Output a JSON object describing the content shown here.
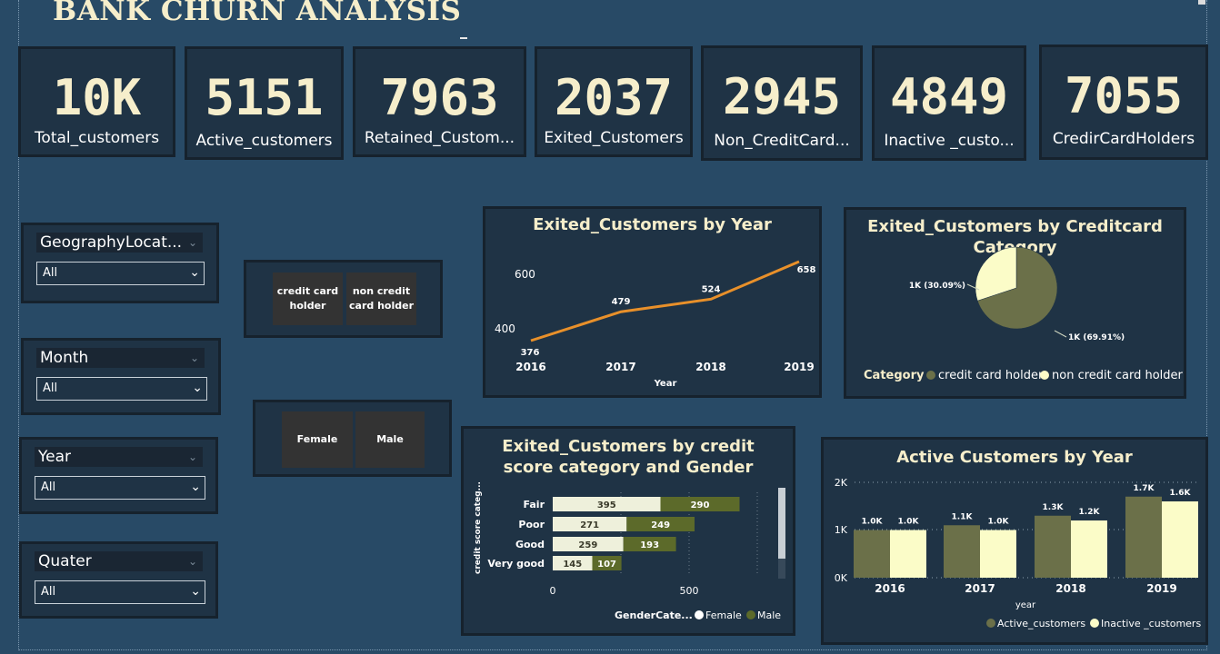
{
  "header": {
    "title": "BANK CHURN ANALYSIS"
  },
  "kpis": [
    {
      "value": "10K",
      "label": "Total_customers"
    },
    {
      "value": "5151",
      "label": "Active_customers"
    },
    {
      "value": "7963",
      "label": "Retained_Custom..."
    },
    {
      "value": "2037",
      "label": "Exited_Customers"
    },
    {
      "value": "2945",
      "label": "Non_CreditCard..."
    },
    {
      "value": "4849",
      "label": "Inactive _custo..."
    },
    {
      "value": "7055",
      "label": "CredirCardHolders"
    }
  ],
  "slicers": [
    {
      "title": "GeographyLocat...",
      "value": "All"
    },
    {
      "title": "Month",
      "value": "All"
    },
    {
      "title": "Year",
      "value": "All"
    },
    {
      "title": "Quater",
      "value": "All"
    }
  ],
  "icons": {
    "chevron": "chevron-down-icon"
  },
  "card_slicer": {
    "options": [
      "credit card holder",
      "non credit card holder"
    ]
  },
  "gender_slicer": {
    "options": [
      "Female",
      "Male"
    ]
  },
  "colors": {
    "accent_line": "#e8902a",
    "olive": "#6b7049",
    "cream": "#fbfcc8",
    "olive_dark": "#5c6a2a"
  },
  "chart_line": {
    "title": "Exited_Customers by Year",
    "chart_data": {
      "type": "line",
      "x": [
        "2016",
        "2017",
        "2018",
        "2019"
      ],
      "values": [
        376,
        479,
        524,
        658
      ],
      "data_labels": [
        "376",
        "479",
        "524",
        "658"
      ],
      "xlabel": "Year",
      "yticks": [
        "600",
        "400"
      ],
      "ylim": [
        340,
        680
      ]
    }
  },
  "chart_pie": {
    "title": "Exited_Customers by Creditcard Category",
    "chart_data": {
      "type": "pie",
      "slices": [
        {
          "name": "credit card holder",
          "value": 69.91,
          "label": "1K (69.91%)"
        },
        {
          "name": "non credit card holder",
          "value": 30.09,
          "label": "1K (30.09%)"
        }
      ],
      "legend_title": "Category",
      "legend": [
        "credit card holder",
        "non credit card holder"
      ]
    }
  },
  "chart_hbar": {
    "title": "Exited_Customers by credit score category and Gender",
    "chart_data": {
      "type": "bar",
      "orientation": "horizontal",
      "stacked": true,
      "categories": [
        "Fair",
        "Poor",
        "Good",
        "Very good"
      ],
      "series": [
        {
          "name": "Female",
          "values": [
            395,
            271,
            259,
            145
          ]
        },
        {
          "name": "Male",
          "values": [
            290,
            249,
            193,
            107
          ]
        }
      ],
      "ylabel": "credit score categ...",
      "xticks": [
        "0",
        "500"
      ],
      "xlim": [
        0,
        700
      ],
      "legend_title": "GenderCate...",
      "legend": [
        "Female",
        "Male"
      ]
    }
  },
  "chart_vbar": {
    "title": "Active Customers by Year",
    "chart_data": {
      "type": "bar",
      "categories": [
        "2016",
        "2017",
        "2018",
        "2019"
      ],
      "series": [
        {
          "name": "Active_customers",
          "values": [
            1.0,
            1.1,
            1.3,
            1.7
          ],
          "labels": [
            "1.0K",
            "1.1K",
            "1.3K",
            "1.7K"
          ]
        },
        {
          "name": "Inactive _customers",
          "values": [
            1.0,
            1.0,
            1.2,
            1.6
          ],
          "labels": [
            "1.0K",
            "1.0K",
            "1.2K",
            "1.6K"
          ]
        }
      ],
      "xlabel": "year",
      "yticks": [
        "2K",
        "1K",
        "0K"
      ],
      "ylim": [
        0,
        2
      ],
      "legend": [
        "Active_customers",
        "Inactive _customers"
      ]
    }
  }
}
